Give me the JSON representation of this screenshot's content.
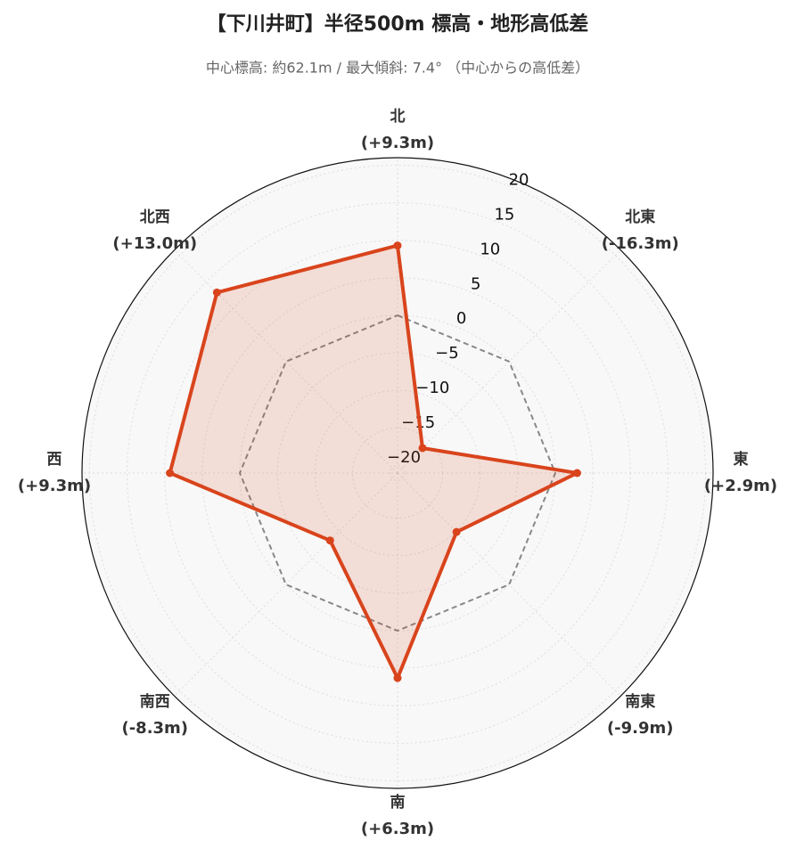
{
  "chart_data": {
    "type": "radar",
    "title": "【下川井町】半径500m 標高・地形高低差",
    "subtitle": "中心標高: 約62.1m / 最大傾斜: 7.4° （中心からの高低差）",
    "categories": [
      "北",
      "北東",
      "東",
      "南東",
      "南",
      "南西",
      "西",
      "北西"
    ],
    "values": [
      9.3,
      -16.3,
      2.9,
      -9.9,
      6.3,
      -8.3,
      9.3,
      13.0
    ],
    "value_labels": [
      "(+9.3m)",
      "(-16.3m)",
      "(+2.9m)",
      "(-9.9m)",
      "(+6.3m)",
      "(-8.3m)",
      "(+9.3m)",
      "(+13.0m)"
    ],
    "color": "#d9441c",
    "baseline": 0,
    "ylim": [
      -21,
      21
    ],
    "yticks": [
      {
        "value": -20,
        "label": "−20"
      },
      {
        "value": -15,
        "label": "−15"
      },
      {
        "value": -10,
        "label": "−10"
      },
      {
        "value": -5,
        "label": "−5"
      },
      0,
      5,
      10,
      15,
      20
    ],
    "grid": true
  }
}
